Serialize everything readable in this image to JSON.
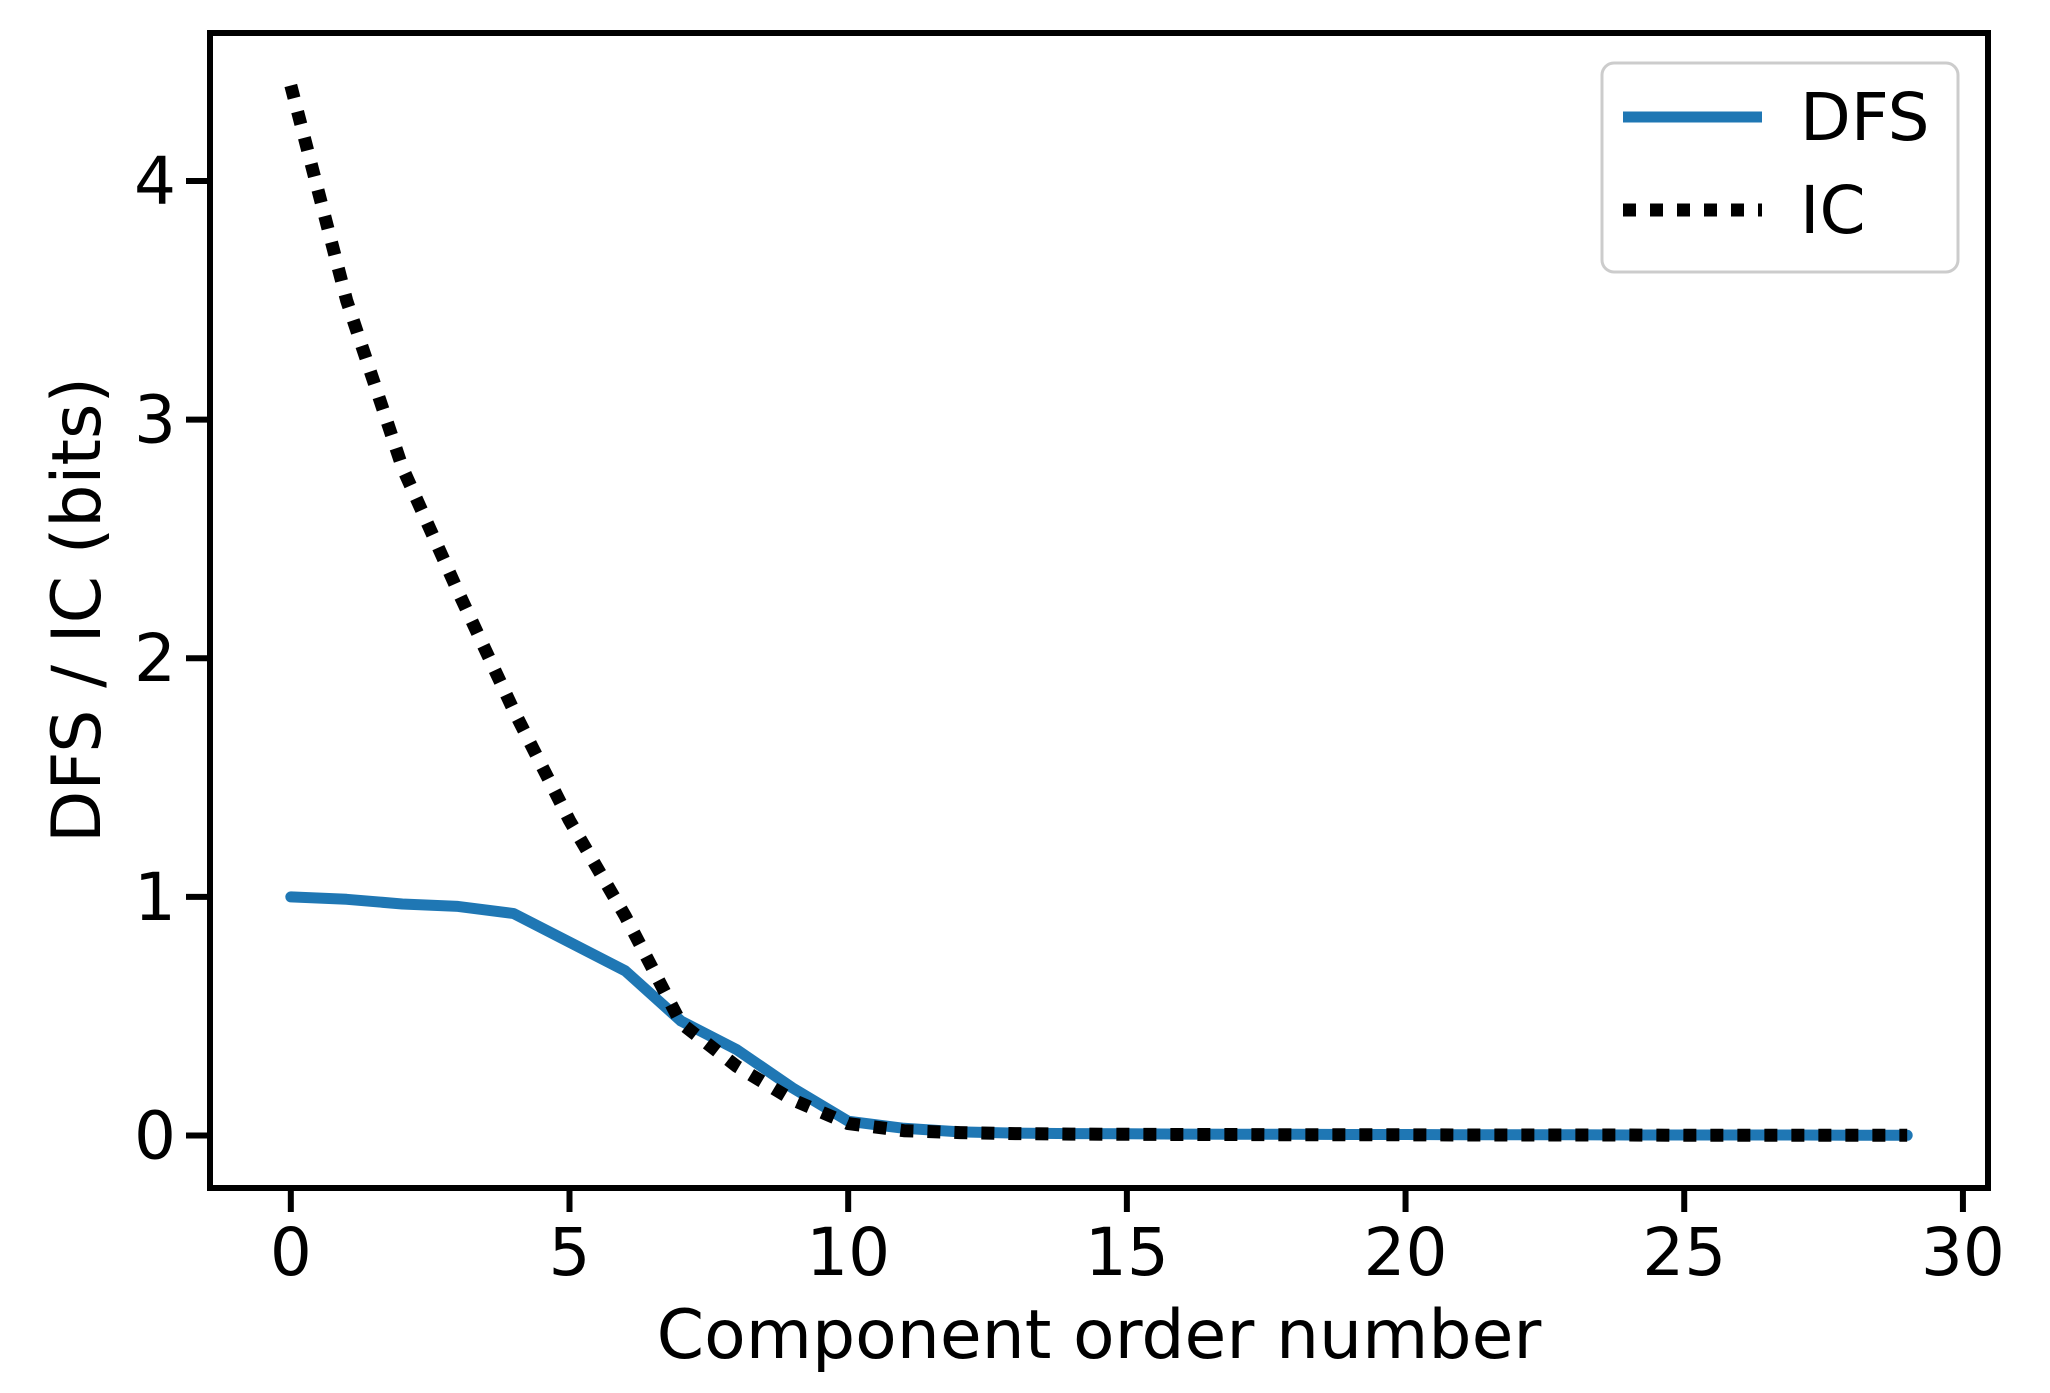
{
  "chart_data": {
    "type": "line",
    "title": "",
    "xlabel": "Component order number",
    "ylabel": "DFS / IC (bits)",
    "x": [
      0,
      1,
      2,
      3,
      4,
      5,
      6,
      7,
      8,
      9,
      10,
      11,
      12,
      13,
      14,
      15,
      16,
      17,
      18,
      19,
      20,
      21,
      22,
      23,
      24,
      25,
      26,
      27,
      28,
      29
    ],
    "series": [
      {
        "name": "DFS",
        "color": "#1f77b4",
        "style": "solid",
        "values": [
          1.0,
          0.99,
          0.97,
          0.96,
          0.93,
          0.81,
          0.69,
          0.48,
          0.36,
          0.2,
          0.06,
          0.03,
          0.015,
          0.01,
          0.008,
          0.007,
          0.006,
          0.005,
          0.005,
          0.004,
          0.004,
          0.003,
          0.003,
          0.003,
          0.002,
          0.002,
          0.002,
          0.002,
          0.001,
          0.001
        ]
      },
      {
        "name": "IC",
        "color": "#000000",
        "style": "dotted",
        "values": [
          4.4,
          3.5,
          2.8,
          2.28,
          1.78,
          1.32,
          0.92,
          0.47,
          0.29,
          0.15,
          0.05,
          0.02,
          0.012,
          0.008,
          0.006,
          0.005,
          0.004,
          0.004,
          0.003,
          0.003,
          0.003,
          0.002,
          0.002,
          0.002,
          0.002,
          0.001,
          0.001,
          0.001,
          0.001,
          0.001
        ]
      }
    ],
    "xlim": [
      -1.45,
      30.45
    ],
    "ylim": [
      -0.22,
      4.62
    ],
    "xticks": [
      "0",
      "5",
      "10",
      "15",
      "20",
      "25",
      "30"
    ],
    "xtick_values": [
      0,
      5,
      10,
      15,
      20,
      25,
      30
    ],
    "yticks": [
      "0",
      "1",
      "2",
      "3",
      "4"
    ],
    "ytick_values": [
      0,
      1,
      2,
      3,
      4
    ],
    "grid": false,
    "legend": {
      "position": "upper right",
      "entries": [
        "DFS",
        "IC"
      ]
    }
  },
  "style": {
    "background": "#ffffff",
    "axis_color": "#000000",
    "dfs_line_color": "#1f77b4",
    "ic_line_color": "#000000",
    "legend_border_color": "#cccccc"
  }
}
